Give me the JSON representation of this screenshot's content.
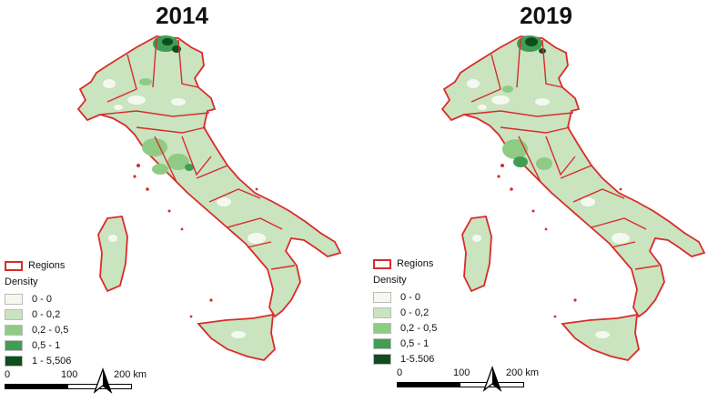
{
  "panels": [
    {
      "year": "2014",
      "legend": {
        "regions_label": "Regions",
        "density_title": "Density",
        "classes": [
          "0 - 0",
          "0 - 0,2",
          "0,2 - 0,5",
          "0,5 - 1",
          "1 - 5,506"
        ]
      },
      "scale": {
        "labels": [
          "0",
          "100",
          "200 km"
        ]
      }
    },
    {
      "year": "2019",
      "legend": {
        "regions_label": "Regions",
        "density_title": "Density",
        "classes": [
          "0 - 0",
          "0 - 0,2",
          "0,2 - 0,5",
          "0,5 - 1",
          "1-5.506"
        ]
      },
      "scale": {
        "labels": [
          "0",
          "100",
          "200 km"
        ]
      }
    }
  ],
  "colors": {
    "region_border": "#d92b2b",
    "class_colors": [
      "#f4f9f0",
      "#c9e4bf",
      "#8fcb85",
      "#3f9e54",
      "#0f4d21"
    ]
  },
  "icons": {
    "north_arrow": "north-arrow-icon"
  }
}
